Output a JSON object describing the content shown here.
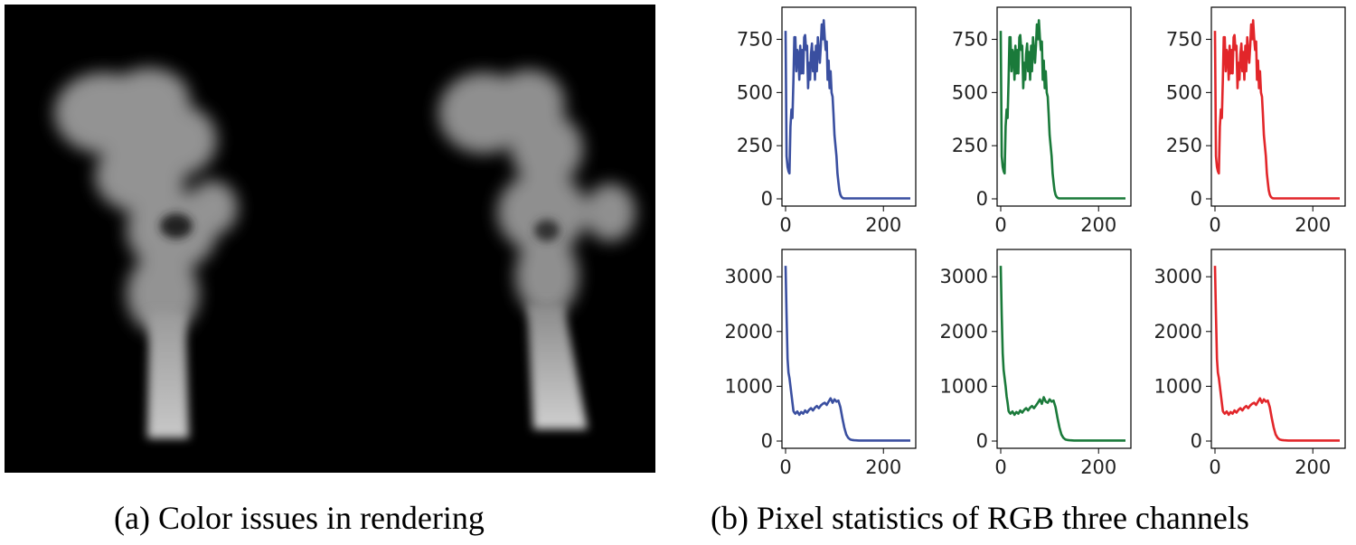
{
  "captions": {
    "a": "(a) Color issues in rendering",
    "b": "(b) Pixel statistics of RGB three channels"
  },
  "colors": {
    "blue": "#3a4fa0",
    "green": "#1a7a3a",
    "red": "#e2262a",
    "smoke": "#d9d9d9",
    "background": "#000000"
  },
  "chart_data": [
    {
      "type": "line",
      "row": 1,
      "col": 1,
      "color": "#3a4fa0",
      "xlim": [
        0,
        255
      ],
      "ylim": [
        0,
        850
      ],
      "xticks": [
        0,
        200
      ],
      "yticks": [
        0,
        250,
        500,
        750
      ],
      "series": [
        {
          "x": [
            0,
            2,
            4,
            6,
            8,
            10,
            12,
            14,
            16,
            18,
            20,
            22,
            24,
            26,
            28,
            30,
            32,
            34,
            36,
            38,
            40,
            42,
            44,
            46,
            48,
            50,
            52,
            54,
            56,
            58,
            60,
            62,
            64,
            66,
            68,
            70,
            72,
            74,
            76,
            78,
            80,
            82,
            84,
            86,
            88,
            90,
            92,
            94,
            96,
            98,
            100,
            102,
            104,
            106,
            108,
            110,
            112,
            114,
            116,
            118,
            120,
            122,
            124,
            126,
            128,
            130,
            135,
            140,
            150,
            160,
            180,
            200,
            220,
            240,
            255
          ],
          "values": [
            790,
            200,
            150,
            130,
            120,
            340,
            420,
            380,
            560,
            760,
            760,
            600,
            700,
            680,
            560,
            720,
            590,
            700,
            590,
            760,
            770,
            700,
            720,
            520,
            640,
            560,
            680,
            730,
            600,
            690,
            560,
            720,
            600,
            760,
            700,
            640,
            720,
            820,
            750,
            840,
            760,
            700,
            740,
            560,
            650,
            520,
            600,
            500,
            480,
            400,
            300,
            250,
            200,
            120,
            80,
            40,
            20,
            10,
            5,
            3,
            2,
            2,
            2,
            2,
            2,
            2,
            2,
            2,
            2,
            2,
            2,
            2,
            2,
            2,
            2
          ]
        }
      ]
    },
    {
      "type": "line",
      "row": 1,
      "col": 2,
      "color": "#1a7a3a",
      "xlim": [
        0,
        255
      ],
      "ylim": [
        0,
        850
      ],
      "xticks": [
        0,
        200
      ],
      "yticks": [
        0,
        250,
        500,
        750
      ],
      "series": [
        {
          "x": [
            0,
            2,
            4,
            6,
            8,
            10,
            12,
            14,
            16,
            18,
            20,
            22,
            24,
            26,
            28,
            30,
            32,
            34,
            36,
            38,
            40,
            42,
            44,
            46,
            48,
            50,
            52,
            54,
            56,
            58,
            60,
            62,
            64,
            66,
            68,
            70,
            72,
            74,
            76,
            78,
            80,
            82,
            84,
            86,
            88,
            90,
            92,
            94,
            96,
            98,
            100,
            102,
            104,
            106,
            108,
            110,
            112,
            114,
            116,
            118,
            120,
            122,
            124,
            126,
            128,
            130,
            135,
            140,
            150,
            160,
            180,
            200,
            220,
            240,
            255
          ],
          "values": [
            790,
            200,
            150,
            130,
            120,
            340,
            420,
            380,
            560,
            760,
            760,
            600,
            700,
            680,
            560,
            720,
            590,
            700,
            590,
            760,
            770,
            700,
            720,
            520,
            640,
            560,
            680,
            730,
            600,
            690,
            560,
            720,
            600,
            760,
            700,
            640,
            720,
            820,
            750,
            840,
            760,
            700,
            740,
            560,
            650,
            520,
            600,
            500,
            480,
            400,
            300,
            250,
            200,
            120,
            80,
            40,
            20,
            10,
            5,
            3,
            2,
            2,
            2,
            2,
            2,
            2,
            2,
            2,
            2,
            2,
            2,
            2,
            2,
            2,
            2
          ]
        }
      ]
    },
    {
      "type": "line",
      "row": 1,
      "col": 3,
      "color": "#e2262a",
      "xlim": [
        0,
        255
      ],
      "ylim": [
        0,
        850
      ],
      "xticks": [
        0,
        200
      ],
      "yticks": [
        0,
        250,
        500,
        750
      ],
      "series": [
        {
          "x": [
            0,
            2,
            4,
            6,
            8,
            10,
            12,
            14,
            16,
            18,
            20,
            22,
            24,
            26,
            28,
            30,
            32,
            34,
            36,
            38,
            40,
            42,
            44,
            46,
            48,
            50,
            52,
            54,
            56,
            58,
            60,
            62,
            64,
            66,
            68,
            70,
            72,
            74,
            76,
            78,
            80,
            82,
            84,
            86,
            88,
            90,
            92,
            94,
            96,
            98,
            100,
            102,
            104,
            106,
            108,
            110,
            112,
            114,
            116,
            118,
            120,
            122,
            124,
            126,
            128,
            130,
            135,
            140,
            150,
            160,
            180,
            200,
            220,
            240,
            255
          ],
          "values": [
            790,
            200,
            150,
            130,
            120,
            340,
            420,
            380,
            560,
            760,
            760,
            600,
            700,
            680,
            560,
            720,
            590,
            700,
            590,
            760,
            770,
            700,
            720,
            520,
            640,
            560,
            680,
            730,
            600,
            690,
            560,
            720,
            600,
            760,
            700,
            640,
            720,
            820,
            750,
            840,
            760,
            700,
            740,
            560,
            650,
            520,
            600,
            500,
            480,
            400,
            300,
            250,
            200,
            120,
            80,
            40,
            20,
            10,
            5,
            3,
            2,
            2,
            2,
            2,
            2,
            2,
            2,
            2,
            2,
            2,
            2,
            2,
            2,
            2,
            2
          ]
        }
      ]
    },
    {
      "type": "line",
      "row": 2,
      "col": 1,
      "color": "#3a4fa0",
      "xlim": [
        0,
        255
      ],
      "ylim": [
        0,
        3300
      ],
      "xticks": [
        0,
        200
      ],
      "yticks": [
        0,
        1000,
        2000,
        3000
      ],
      "series": [
        {
          "x": [
            0,
            2,
            4,
            6,
            8,
            10,
            12,
            14,
            16,
            18,
            20,
            24,
            28,
            32,
            36,
            40,
            44,
            48,
            52,
            56,
            60,
            64,
            68,
            72,
            76,
            80,
            84,
            88,
            92,
            96,
            100,
            104,
            108,
            112,
            116,
            120,
            124,
            128,
            132,
            136,
            140,
            150,
            160,
            180,
            200,
            220,
            240,
            255
          ],
          "values": [
            3200,
            2300,
            1500,
            1250,
            1150,
            1000,
            850,
            700,
            550,
            520,
            500,
            540,
            480,
            530,
            500,
            560,
            520,
            570,
            600,
            560,
            610,
            640,
            600,
            650,
            680,
            700,
            660,
            720,
            780,
            700,
            760,
            720,
            740,
            620,
            420,
            250,
            120,
            60,
            30,
            20,
            15,
            10,
            10,
            10,
            10,
            10,
            10,
            10
          ]
        }
      ]
    },
    {
      "type": "line",
      "row": 2,
      "col": 2,
      "color": "#1a7a3a",
      "xlim": [
        0,
        255
      ],
      "ylim": [
        0,
        3300
      ],
      "xticks": [
        0,
        200
      ],
      "yticks": [
        0,
        1000,
        2000,
        3000
      ],
      "series": [
        {
          "x": [
            0,
            2,
            4,
            6,
            8,
            10,
            12,
            14,
            16,
            18,
            20,
            24,
            28,
            32,
            36,
            40,
            44,
            48,
            52,
            56,
            60,
            64,
            68,
            72,
            76,
            80,
            84,
            88,
            92,
            96,
            100,
            104,
            108,
            112,
            116,
            120,
            124,
            128,
            132,
            136,
            140,
            150,
            160,
            180,
            200,
            220,
            240,
            255
          ],
          "values": [
            3200,
            2300,
            1600,
            1300,
            1150,
            1000,
            820,
            700,
            550,
            520,
            500,
            540,
            480,
            530,
            500,
            560,
            520,
            570,
            600,
            560,
            610,
            640,
            600,
            650,
            700,
            760,
            680,
            800,
            720,
            700,
            760,
            720,
            740,
            620,
            420,
            250,
            120,
            60,
            30,
            20,
            15,
            10,
            10,
            10,
            10,
            10,
            10,
            10
          ]
        }
      ]
    },
    {
      "type": "line",
      "row": 2,
      "col": 3,
      "color": "#e2262a",
      "xlim": [
        0,
        255
      ],
      "ylim": [
        0,
        3300
      ],
      "xticks": [
        0,
        200
      ],
      "yticks": [
        0,
        1000,
        2000,
        3000
      ],
      "series": [
        {
          "x": [
            0,
            2,
            4,
            6,
            8,
            10,
            12,
            14,
            16,
            18,
            20,
            24,
            28,
            32,
            36,
            40,
            44,
            48,
            52,
            56,
            60,
            64,
            68,
            72,
            76,
            80,
            84,
            88,
            92,
            96,
            100,
            104,
            108,
            112,
            116,
            120,
            124,
            128,
            132,
            136,
            140,
            150,
            160,
            180,
            200,
            220,
            240,
            255
          ],
          "values": [
            3200,
            2300,
            1500,
            1250,
            1150,
            1000,
            850,
            700,
            550,
            520,
            500,
            540,
            480,
            530,
            500,
            560,
            520,
            570,
            600,
            560,
            610,
            640,
            600,
            650,
            680,
            700,
            660,
            720,
            780,
            700,
            760,
            720,
            740,
            620,
            420,
            250,
            120,
            60,
            30,
            20,
            15,
            10,
            10,
            10,
            10,
            10,
            10,
            10
          ]
        }
      ]
    }
  ]
}
